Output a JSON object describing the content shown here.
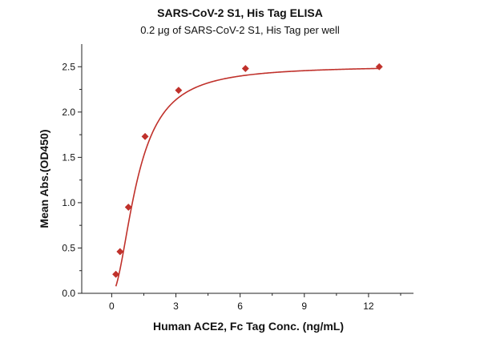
{
  "chart_data": {
    "type": "scatter",
    "title": "SARS-CoV-2 S1, His Tag ELISA",
    "subtitle": "0.2 μg of SARS-CoV-2 S1, His Tag per well",
    "xlabel": "Human ACE2, Fc Tag Conc. (ng/mL)",
    "ylabel": "Mean Abs.(OD450)",
    "xlim": [
      -1.4,
      14.1
    ],
    "ylim": [
      0,
      2.75
    ],
    "xticks": [
      0,
      3,
      6,
      9,
      12
    ],
    "xtick_labels": [
      "0",
      "3",
      "6",
      "9",
      "12"
    ],
    "yticks": [
      0.0,
      0.5,
      1.0,
      1.5,
      2.0,
      2.5
    ],
    "ytick_labels": [
      "0.0",
      "0.5",
      "1.0",
      "1.5",
      "2.0",
      "2.5"
    ],
    "grid": false,
    "legend": "none",
    "series": [
      {
        "x": [
          0.195,
          0.39,
          0.78,
          1.56,
          3.125,
          6.25,
          12.5
        ],
        "y": [
          0.21,
          0.46,
          0.95,
          1.73,
          2.24,
          2.48,
          2.5
        ],
        "marker": "diamond",
        "color": "#c0312b"
      }
    ],
    "fit_curve": {
      "model": "4PL",
      "bottom": 0.0,
      "top": 2.51,
      "ec50": 1.2,
      "hill": 1.9,
      "color": "#c0312b"
    }
  }
}
